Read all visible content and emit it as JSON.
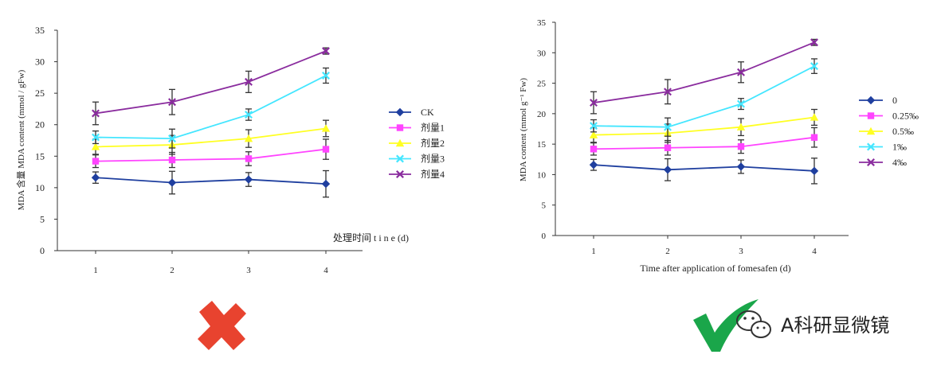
{
  "chart_data": [
    {
      "type": "line",
      "categories": [
        "1",
        "2",
        "3",
        "4"
      ],
      "xlabel": "处理时间 t i n e (d)",
      "ylabel": "MDA 含量 MDA content (mmol / gFw)",
      "ylim": [
        0,
        35
      ],
      "yticks": [
        "0",
        "5",
        "10",
        "15",
        "20",
        "25",
        "30",
        "35"
      ],
      "grid": false,
      "legend": "right",
      "series": [
        {
          "name": "CK",
          "color": "#1f3f9f",
          "marker": "diamond",
          "values": [
            11.6,
            10.8,
            11.3,
            10.6
          ],
          "errors": [
            0.9,
            1.8,
            1.1,
            2.1
          ]
        },
        {
          "name": "剂量1",
          "color": "#ff44ff",
          "marker": "square",
          "values": [
            14.2,
            14.4,
            14.6,
            16.1
          ],
          "errors": [
            1.0,
            1.2,
            1.1,
            1.6
          ]
        },
        {
          "name": "剂量2",
          "color": "#ffff22",
          "marker": "triangle",
          "values": [
            16.5,
            16.8,
            17.8,
            19.4
          ],
          "errors": [
            1.2,
            1.5,
            1.4,
            1.3
          ]
        },
        {
          "name": "剂量3",
          "color": "#44e6ff",
          "marker": "x",
          "values": [
            18.0,
            17.8,
            21.6,
            27.8
          ],
          "errors": [
            1.0,
            1.5,
            0.9,
            1.2
          ]
        },
        {
          "name": "剂量4",
          "color": "#8a2c9e",
          "marker": "x",
          "values": [
            21.8,
            23.6,
            26.8,
            31.7
          ],
          "errors": [
            1.8,
            2.0,
            1.7,
            0.5
          ]
        }
      ],
      "verdict": "wrong"
    },
    {
      "type": "line",
      "categories": [
        "1",
        "2",
        "3",
        "4"
      ],
      "xlabel": "Time after application of fomesafen (d)",
      "ylabel": "MDA content (mmol g⁻¹ Fw)",
      "ylim": [
        0,
        35
      ],
      "yticks": [
        "0",
        "5",
        "10",
        "15",
        "20",
        "25",
        "30",
        "35"
      ],
      "grid": false,
      "legend": "right",
      "series": [
        {
          "name": "0",
          "color": "#1f3f9f",
          "marker": "diamond",
          "values": [
            11.6,
            10.8,
            11.3,
            10.6
          ],
          "errors": [
            0.9,
            1.8,
            1.1,
            2.1
          ]
        },
        {
          "name": "0.25‰",
          "color": "#ff44ff",
          "marker": "square",
          "values": [
            14.2,
            14.4,
            14.6,
            16.1
          ],
          "errors": [
            1.0,
            1.2,
            1.1,
            1.6
          ]
        },
        {
          "name": "0.5‰",
          "color": "#ffff22",
          "marker": "triangle",
          "values": [
            16.5,
            16.8,
            17.8,
            19.4
          ],
          "errors": [
            1.2,
            1.5,
            1.4,
            1.3
          ]
        },
        {
          "name": "1‰",
          "color": "#44e6ff",
          "marker": "x",
          "values": [
            18.0,
            17.8,
            21.6,
            27.8
          ],
          "errors": [
            1.0,
            1.5,
            0.9,
            1.2
          ]
        },
        {
          "name": "4‰",
          "color": "#8a2c9e",
          "marker": "x",
          "values": [
            21.8,
            23.6,
            26.8,
            31.7
          ],
          "errors": [
            1.8,
            2.0,
            1.7,
            0.5
          ]
        }
      ],
      "verdict": "correct"
    }
  ],
  "marks": {
    "wrong_color": "#e8432f",
    "correct_color": "#1aa64a"
  },
  "watermark": {
    "icon": "wechat-icon",
    "text": "A科研显微镜"
  }
}
